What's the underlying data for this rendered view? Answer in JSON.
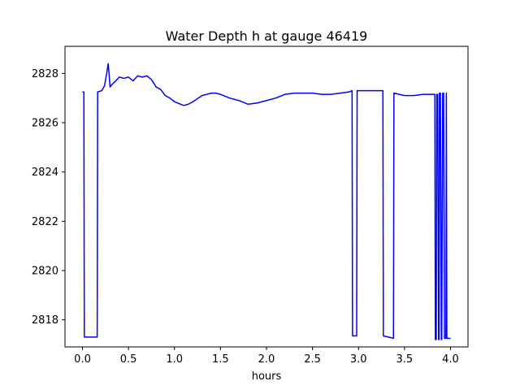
{
  "chart_data": {
    "type": "line",
    "title": "Water Depth h at gauge 46419",
    "xlabel": "hours",
    "ylabel": "",
    "xlim": [
      -0.19,
      4.19
    ],
    "ylim": [
      2816.9,
      2829.1
    ],
    "xticks": [
      0.0,
      0.5,
      1.0,
      1.5,
      2.0,
      2.5,
      3.0,
      3.5,
      4.0
    ],
    "xtick_labels": [
      "0.0",
      "0.5",
      "1.0",
      "1.5",
      "2.0",
      "2.5",
      "3.0",
      "3.5",
      "4.0"
    ],
    "yticks": [
      2818,
      2820,
      2822,
      2824,
      2826,
      2828
    ],
    "ytick_labels": [
      "2818",
      "2820",
      "2822",
      "2824",
      "2826",
      "2828"
    ],
    "grid": false,
    "series": [
      {
        "color": "#0000ff",
        "x": [
          0.0,
          0.015,
          0.02,
          0.16,
          0.165,
          0.21,
          0.24,
          0.265,
          0.28,
          0.3,
          0.32,
          0.35,
          0.4,
          0.45,
          0.5,
          0.55,
          0.6,
          0.65,
          0.7,
          0.75,
          0.8,
          0.85,
          0.9,
          0.95,
          1.0,
          1.1,
          1.15,
          1.2,
          1.3,
          1.4,
          1.45,
          1.5,
          1.6,
          1.7,
          1.8,
          1.9,
          2.0,
          2.1,
          2.2,
          2.3,
          2.4,
          2.5,
          2.6,
          2.7,
          2.8,
          2.9,
          2.93,
          2.935,
          2.98,
          2.985,
          3.1,
          3.2,
          3.265,
          3.27,
          3.38,
          3.385,
          3.5,
          3.6,
          3.7,
          3.8,
          3.83,
          3.835,
          3.845,
          3.85,
          3.86,
          3.87,
          3.875,
          3.88,
          3.89,
          3.9,
          3.905,
          3.915,
          3.925,
          3.935,
          3.95,
          3.955,
          3.96,
          4.0
        ],
        "y": [
          2827.25,
          2827.25,
          2817.3,
          2817.3,
          2827.25,
          2827.3,
          2827.5,
          2828.05,
          2828.4,
          2827.45,
          2827.55,
          2827.65,
          2827.85,
          2827.8,
          2827.85,
          2827.7,
          2827.9,
          2827.85,
          2827.9,
          2827.75,
          2827.45,
          2827.35,
          2827.1,
          2827.0,
          2826.85,
          2826.7,
          2826.75,
          2826.85,
          2827.1,
          2827.2,
          2827.2,
          2827.15,
          2827.0,
          2826.9,
          2826.75,
          2826.8,
          2826.9,
          2827.0,
          2827.15,
          2827.2,
          2827.2,
          2827.2,
          2827.15,
          2827.15,
          2827.2,
          2827.25,
          2827.3,
          2817.35,
          2817.35,
          2827.3,
          2827.3,
          2827.3,
          2827.3,
          2817.35,
          2817.25,
          2827.2,
          2827.1,
          2827.1,
          2827.15,
          2827.15,
          2827.15,
          2817.2,
          2817.2,
          2827.15,
          2827.15,
          2817.2,
          2817.2,
          2827.2,
          2827.2,
          2817.2,
          2817.2,
          2827.2,
          2827.2,
          2817.25,
          2817.25,
          2827.2,
          2817.25,
          2817.25
        ]
      }
    ]
  }
}
